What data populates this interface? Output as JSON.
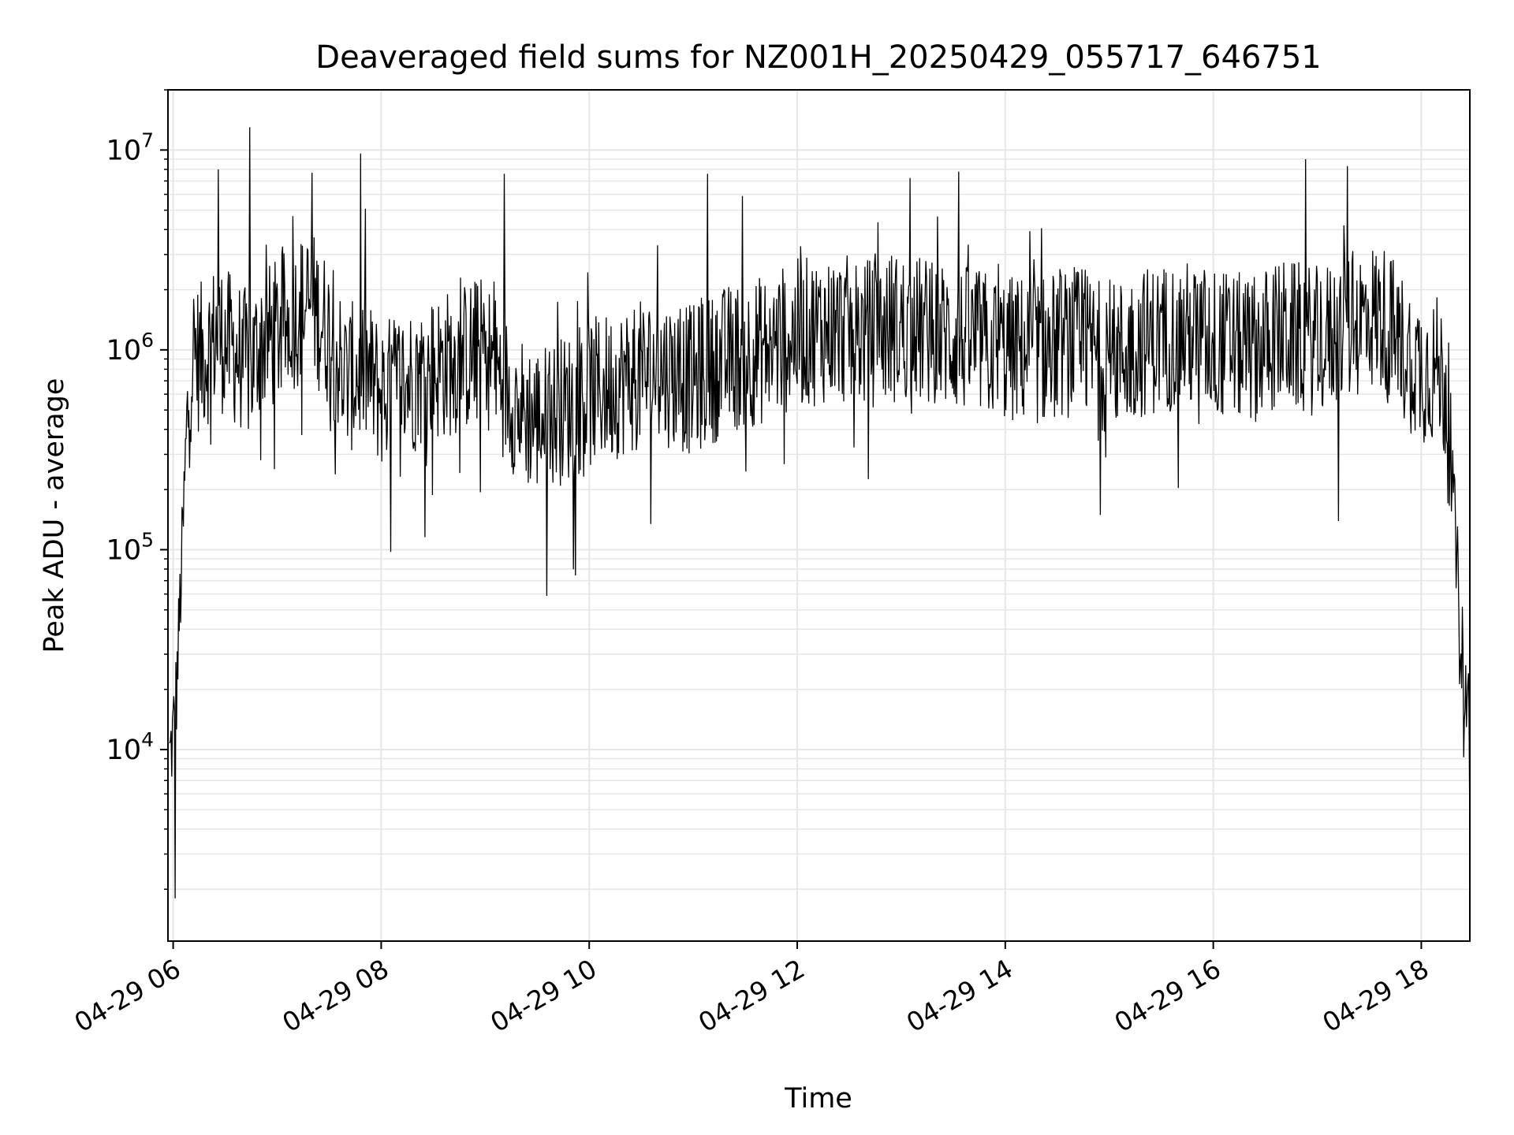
{
  "chart_data": {
    "type": "line",
    "title": "Deaveraged field sums for NZ001H_20250429_055717_646751",
    "xlabel": "Time",
    "ylabel": "Peak ADU - average",
    "x_scale": "time",
    "y_scale": "log",
    "xlim": [
      "2025-04-29 05:57",
      "2025-04-29 18:28"
    ],
    "ylim": [
      1100,
      20000000
    ],
    "grid": true,
    "legend": "none",
    "line_color": "#000000",
    "grid_color": "#e6e6e6",
    "x_ticks": [
      {
        "value": "2025-04-29 06:00",
        "label": "04-29 06"
      },
      {
        "value": "2025-04-29 08:00",
        "label": "04-29 08"
      },
      {
        "value": "2025-04-29 10:00",
        "label": "04-29 10"
      },
      {
        "value": "2025-04-29 12:00",
        "label": "04-29 12"
      },
      {
        "value": "2025-04-29 14:00",
        "label": "04-29 14"
      },
      {
        "value": "2025-04-29 16:00",
        "label": "04-29 16"
      },
      {
        "value": "2025-04-29 18:00",
        "label": "04-29 18"
      }
    ],
    "y_ticks": [
      {
        "value": 10000,
        "base": "10",
        "exp": "4"
      },
      {
        "value": 100000,
        "base": "10",
        "exp": "5"
      },
      {
        "value": 1000000,
        "base": "10",
        "exp": "6"
      },
      {
        "value": 10000000,
        "base": "10",
        "exp": "7"
      }
    ],
    "series": [
      {
        "x": [
          "2025-04-29 05:58",
          "2025-04-29 06:00",
          "2025-04-29 06:02",
          "2025-04-29 06:05",
          "2025-04-29 06:08",
          "2025-04-29 06:10",
          "2025-04-29 06:12",
          "2025-04-29 06:15",
          "2025-04-29 06:20",
          "2025-04-29 06:25",
          "2025-04-29 06:30",
          "2025-04-29 06:40",
          "2025-04-29 06:45",
          "2025-04-29 06:50",
          "2025-04-29 07:00",
          "2025-04-29 07:10",
          "2025-04-29 07:20",
          "2025-04-29 07:30",
          "2025-04-29 07:40",
          "2025-04-29 07:50",
          "2025-04-29 08:00",
          "2025-04-29 08:15",
          "2025-04-29 08:30",
          "2025-04-29 08:45",
          "2025-04-29 09:00",
          "2025-04-29 09:10",
          "2025-04-29 09:20",
          "2025-04-29 09:30",
          "2025-04-29 09:45",
          "2025-04-29 10:00",
          "2025-04-29 10:20",
          "2025-04-29 10:40",
          "2025-04-29 11:00",
          "2025-04-29 11:20",
          "2025-04-29 11:40",
          "2025-04-29 12:00",
          "2025-04-29 12:20",
          "2025-04-29 12:40",
          "2025-04-29 13:00",
          "2025-04-29 13:20",
          "2025-04-29 13:40",
          "2025-04-29 14:00",
          "2025-04-29 14:20",
          "2025-04-29 14:40",
          "2025-04-29 15:00",
          "2025-04-29 15:20",
          "2025-04-29 15:40",
          "2025-04-29 16:00",
          "2025-04-29 16:20",
          "2025-04-29 16:40",
          "2025-04-29 17:00",
          "2025-04-29 17:10",
          "2025-04-29 17:20",
          "2025-04-29 17:30",
          "2025-04-29 17:40",
          "2025-04-29 17:50",
          "2025-04-29 18:00",
          "2025-04-29 18:10",
          "2025-04-29 18:15",
          "2025-04-29 18:20",
          "2025-04-29 18:25",
          "2025-04-29 18:28"
        ],
        "values": [
          9000,
          12000,
          20000,
          90000,
          400000,
          800000,
          1000000,
          900000,
          1000000,
          1200000,
          1100000,
          900000,
          800000,
          1100000,
          1200000,
          1500000,
          1700000,
          1200000,
          700000,
          800000,
          600000,
          700000,
          800000,
          900000,
          1000000,
          700000,
          500000,
          450000,
          500000,
          600000,
          700000,
          800000,
          700000,
          900000,
          1000000,
          1200000,
          1300000,
          1200000,
          1300000,
          1200000,
          1100000,
          1000000,
          1000000,
          1100000,
          900000,
          1100000,
          1200000,
          1100000,
          1000000,
          1200000,
          1100000,
          1200000,
          1300000,
          1500000,
          1400000,
          1000000,
          800000,
          800000,
          600000,
          100000,
          20000,
          15000
        ],
        "spike_x": [
          "2025-04-29 06:01",
          "2025-04-29 06:26",
          "2025-04-29 06:44",
          "2025-04-29 07:20",
          "2025-04-29 07:48",
          "2025-04-29 09:11",
          "2025-04-29 11:08",
          "2025-04-29 13:33",
          "2025-04-29 17:17"
        ],
        "spike_values": [
          1800,
          8000000,
          13000000,
          7700000,
          9600000,
          7600000,
          7600000,
          7800000,
          8300000
        ]
      }
    ]
  }
}
